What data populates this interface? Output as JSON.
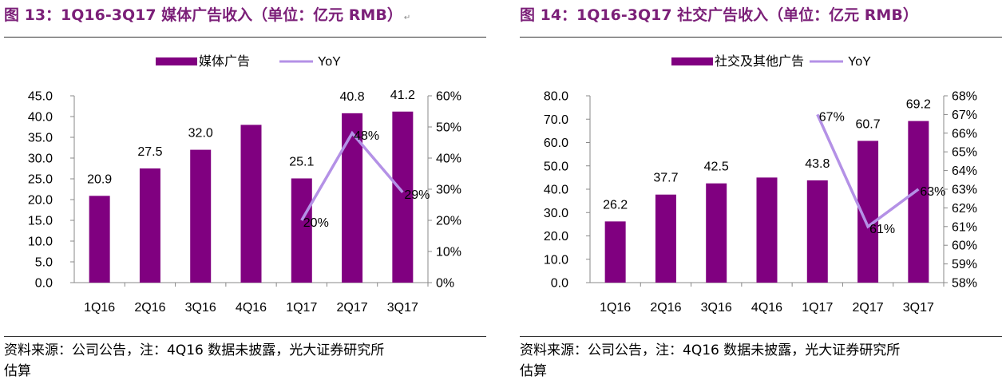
{
  "colors": {
    "bar": "#800080",
    "line": "#b491e6",
    "title": "#7b1f78"
  },
  "charts": [
    {
      "title": "图 13：1Q16-3Q17 媒体广告收入（单位：亿元 RMB）",
      "source_line1": "资料来源：公司公告，注：4Q16 数据未披露，光大证券研究所",
      "source_line2": "估算",
      "chart_data": {
        "type": "bar",
        "categories": [
          "1Q16",
          "2Q16",
          "3Q16",
          "4Q16",
          "1Q17",
          "2Q17",
          "3Q17"
        ],
        "series": [
          {
            "name": "媒体广告",
            "kind": "bar",
            "axis": "left",
            "values": [
              20.9,
              27.5,
              32.0,
              38.0,
              25.1,
              40.8,
              41.2
            ],
            "labels": [
              "20.9",
              "27.5",
              "32.0",
              "",
              "25.1",
              "40.8",
              "41.2"
            ]
          },
          {
            "name": "YoY",
            "kind": "line",
            "axis": "right",
            "values": [
              null,
              null,
              null,
              null,
              20,
              48,
              29
            ],
            "labels": [
              "",
              "",
              "",
              "",
              "20%",
              "48%",
              "29%"
            ]
          }
        ],
        "y_left": {
          "min": 0,
          "max": 45,
          "step": 5,
          "ticks": [
            "0.0",
            "5.0",
            "10.0",
            "15.0",
            "20.0",
            "25.0",
            "30.0",
            "35.0",
            "40.0",
            "45.0"
          ]
        },
        "y_right": {
          "min": 0,
          "max": 60,
          "step": 10,
          "ticks": [
            "0%",
            "10%",
            "20%",
            "30%",
            "40%",
            "50%",
            "60%"
          ]
        },
        "legend_position": "top",
        "grid": false
      }
    },
    {
      "title": "图 14：1Q16-3Q17 社交广告收入（单位：亿元 RMB）",
      "source_line1": "资料来源：公司公告，注：4Q16 数据未披露，光大证券研究所",
      "source_line2": "估算",
      "chart_data": {
        "type": "bar",
        "categories": [
          "1Q16",
          "2Q16",
          "3Q16",
          "4Q16",
          "1Q17",
          "2Q17",
          "3Q17"
        ],
        "series": [
          {
            "name": "社交及其他广告",
            "kind": "bar",
            "axis": "left",
            "values": [
              26.2,
              37.7,
              42.5,
              45.0,
              43.8,
              60.7,
              69.2
            ],
            "labels": [
              "26.2",
              "37.7",
              "42.5",
              "",
              "43.8",
              "60.7",
              "69.2"
            ]
          },
          {
            "name": "YoY",
            "kind": "line",
            "axis": "right",
            "values": [
              null,
              null,
              null,
              null,
              67,
              61,
              63
            ],
            "labels": [
              "",
              "",
              "",
              "",
              "67%",
              "61%",
              "63%"
            ]
          }
        ],
        "y_left": {
          "min": 0,
          "max": 80,
          "step": 10,
          "ticks": [
            "0.0",
            "10.0",
            "20.0",
            "30.0",
            "40.0",
            "50.0",
            "60.0",
            "70.0",
            "80.0"
          ]
        },
        "y_right": {
          "min": 58,
          "max": 68,
          "step": 1,
          "ticks": [
            "58%",
            "59%",
            "60%",
            "61%",
            "62%",
            "63%",
            "64%",
            "65%",
            "66%",
            "67%",
            "68%"
          ]
        },
        "legend_position": "top",
        "grid": false
      }
    }
  ]
}
